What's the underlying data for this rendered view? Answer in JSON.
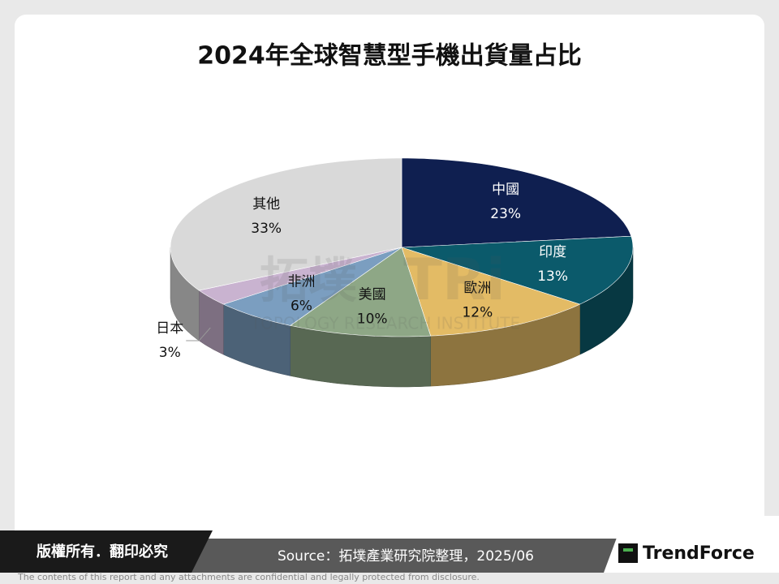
{
  "chart_data": {
    "type": "pie3d",
    "title": "2024年全球智慧型手機出貨量占比",
    "categories": [
      "中國",
      "印度",
      "歐洲",
      "美國",
      "非洲",
      "日本",
      "其他"
    ],
    "values": [
      23,
      13,
      12,
      10,
      6,
      3,
      33
    ],
    "value_labels": [
      "23%",
      "13%",
      "12%",
      "10%",
      "6%",
      "3%",
      "33%"
    ],
    "colors": [
      "#0f1f50",
      "#0b5a6b",
      "#e3bb65",
      "#8ea786",
      "#7b9ec0",
      "#c9b3d0",
      "#d9d9d9"
    ]
  },
  "watermark": [
    "拓墣",
    "TRi",
    "TOPOLOGY RESEARCH INSTITUTE"
  ],
  "footer": {
    "copyright": "版權所有．翻印必究",
    "source": "Source：拓墣產業研究院整理，2025/06",
    "brand": "TrendForce",
    "disclaimer": "The contents of this report and any attachments are confidential and legally protected from disclosure."
  }
}
